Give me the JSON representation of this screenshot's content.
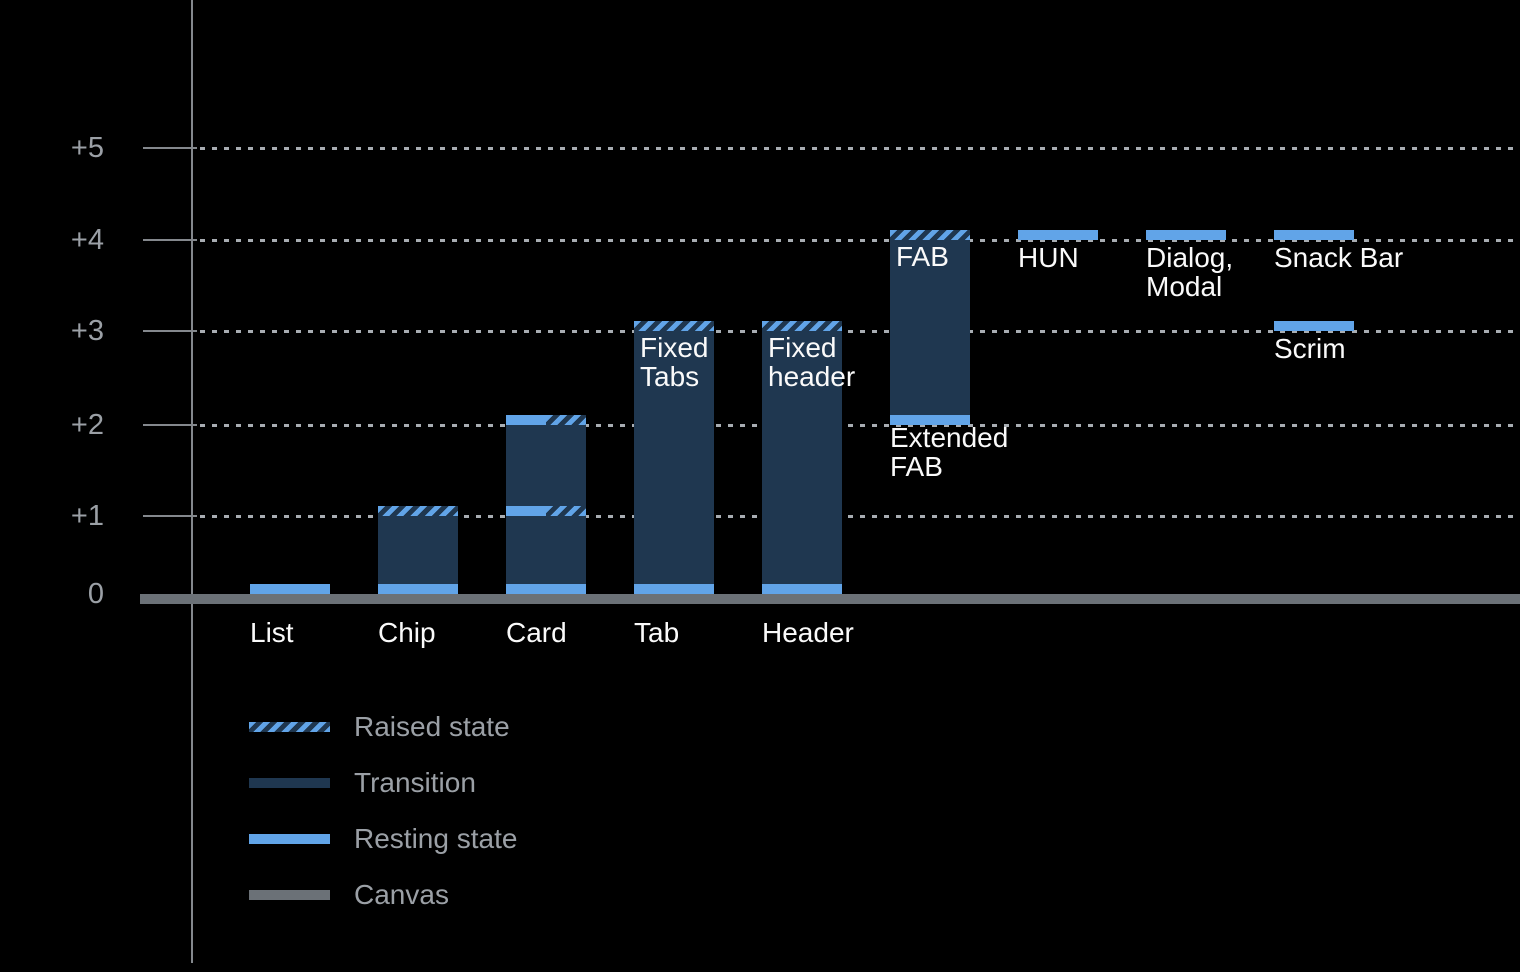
{
  "chart_data": {
    "type": "bar",
    "subtype": "material-elevation-diagram",
    "title": "",
    "xlabel": "",
    "ylabel": "",
    "y_axis": {
      "range": [
        0,
        5
      ],
      "grid": "dotted",
      "ticks": [
        {
          "label": "+5",
          "value": 5
        },
        {
          "label": "+4",
          "value": 4
        },
        {
          "label": "+3",
          "value": 3
        },
        {
          "label": "+2",
          "value": 2
        },
        {
          "label": "+1",
          "value": 1
        },
        {
          "label": "0",
          "value": 0
        }
      ]
    },
    "legend": [
      {
        "label": "Raised state",
        "style": "raised"
      },
      {
        "label": "Transition",
        "style": "transition"
      },
      {
        "label": "Resting state",
        "style": "resting"
      },
      {
        "label": "Canvas",
        "style": "canvas"
      }
    ],
    "legend_position": "bottom-left",
    "components": [
      {
        "name": "list",
        "col": 0,
        "axis_label": "List",
        "transition": null,
        "bands": [
          {
            "level": 0,
            "style": "resting"
          }
        ],
        "labels": []
      },
      {
        "name": "chip",
        "col": 1,
        "axis_label": "Chip",
        "transition": [
          0,
          1
        ],
        "bands": [
          {
            "level": 0,
            "style": "resting"
          },
          {
            "level": 1,
            "style": "raised"
          }
        ],
        "labels": []
      },
      {
        "name": "card",
        "col": 2,
        "axis_label": "Card",
        "transition": [
          0,
          2
        ],
        "bands": [
          {
            "level": 0,
            "style": "resting"
          },
          {
            "level": 1,
            "style": "split"
          },
          {
            "level": 2,
            "style": "split"
          }
        ],
        "labels": []
      },
      {
        "name": "tab",
        "col": 3,
        "axis_label": "Tab",
        "transition": [
          0,
          3
        ],
        "bands": [
          {
            "level": 0,
            "style": "resting"
          },
          {
            "level": 3,
            "style": "raised"
          }
        ],
        "labels": [
          {
            "lines": [
              "Fixed",
              "Tabs"
            ],
            "pos": "inside-top"
          }
        ]
      },
      {
        "name": "header",
        "col": 4,
        "axis_label": "Header",
        "transition": [
          0,
          3
        ],
        "bands": [
          {
            "level": 0,
            "style": "resting"
          },
          {
            "level": 3,
            "style": "raised"
          }
        ],
        "labels": [
          {
            "lines": [
              "Fixed",
              "header"
            ],
            "pos": "inside-top"
          }
        ]
      },
      {
        "name": "fab",
        "col": 5,
        "axis_label": "",
        "transition": [
          2,
          4
        ],
        "bands": [
          {
            "level": 2,
            "style": "resting"
          },
          {
            "level": 4,
            "style": "raised"
          }
        ],
        "labels": [
          {
            "lines": [
              "FAB"
            ],
            "pos": "inside-top"
          },
          {
            "lines": [
              "Extended",
              "FAB"
            ],
            "pos": "below-bar"
          }
        ]
      },
      {
        "name": "hun",
        "col": 6,
        "axis_label": "",
        "transition": null,
        "bands": [
          {
            "level": 4,
            "style": "resting"
          }
        ],
        "labels": [
          {
            "lines": [
              "HUN"
            ],
            "pos": "below-band",
            "level": 4
          }
        ]
      },
      {
        "name": "dialog-modal",
        "col": 7,
        "axis_label": "",
        "transition": null,
        "bands": [
          {
            "level": 4,
            "style": "resting"
          }
        ],
        "labels": [
          {
            "lines": [
              "Dialog,",
              "Modal"
            ],
            "pos": "below-band",
            "level": 4
          }
        ]
      },
      {
        "name": "snack-bar",
        "col": 8,
        "axis_label": "",
        "transition": null,
        "bands": [
          {
            "level": 4,
            "style": "resting"
          }
        ],
        "labels": [
          {
            "lines": [
              "Snack Bar"
            ],
            "pos": "below-band",
            "level": 4
          }
        ]
      },
      {
        "name": "scrim",
        "col": 8,
        "axis_label": "",
        "transition": null,
        "bands": [
          {
            "level": 3,
            "style": "resting"
          }
        ],
        "labels": [
          {
            "lines": [
              "Scrim"
            ],
            "pos": "below-band",
            "level": 3
          }
        ]
      }
    ],
    "colors": {
      "background": "#000000",
      "resting_blue": "#61A4E8",
      "transition_navy": "#1F3750",
      "canvas_gray": "#6B7177",
      "axis_gray": "#84888D",
      "grid_dot_gray": "#A8ADB2",
      "axis_text_gray": "#9BA0A6",
      "bar_label_white": "#FAFAFA"
    }
  }
}
